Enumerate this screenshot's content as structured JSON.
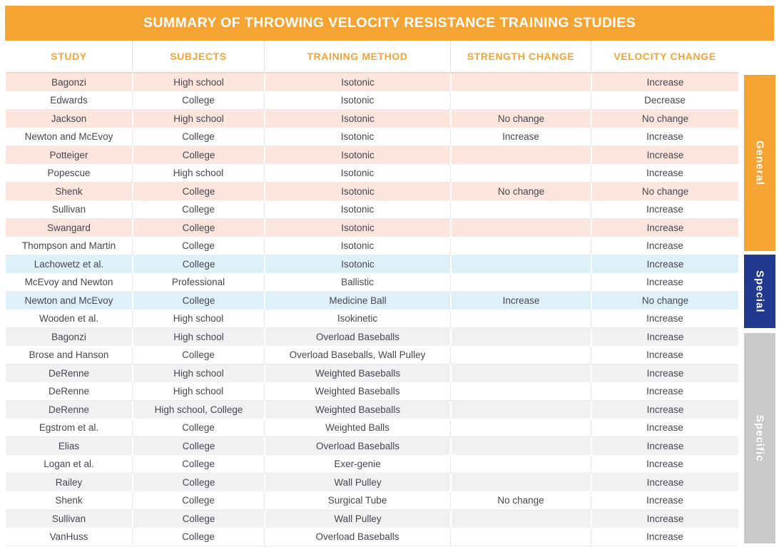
{
  "chart_data": {
    "type": "table",
    "title": "SUMMARY OF THROWING VELOCITY RESISTANCE TRAINING STUDIES",
    "columns": [
      "STUDY",
      "SUBJECTS",
      "TRAINING METHOD",
      "STRENGTH CHANGE",
      "VELOCITY CHANGE"
    ],
    "sections": [
      {
        "label": "General",
        "rows": [
          [
            "Bagonzi",
            "High school",
            "Isotonic",
            "",
            "Increase"
          ],
          [
            "Edwards",
            "College",
            "Isotonic",
            "",
            "Decrease"
          ],
          [
            "Jackson",
            "High school",
            "Isotonic",
            "No change",
            "No change"
          ],
          [
            "Newton and McEvoy",
            "College",
            "Isotonic",
            "Increase",
            "Increase"
          ],
          [
            "Potteiger",
            "College",
            "Isotonic",
            "",
            "Increase"
          ],
          [
            "Popescue",
            "High school",
            "Isotonic",
            "",
            "Increase"
          ],
          [
            "Shenk",
            "College",
            "Isotonic",
            "No change",
            "No change"
          ],
          [
            "Sullivan",
            "College",
            "Isotonic",
            "",
            "Increase"
          ],
          [
            "Swangard",
            "College",
            "Isotonic",
            "",
            "Increase"
          ],
          [
            "Thompson and Martin",
            "College",
            "Isotonic",
            "",
            "Increase"
          ]
        ]
      },
      {
        "label": "Special",
        "rows": [
          [
            "Lachowetz et al.",
            "College",
            "Isotonic",
            "",
            "Increase"
          ],
          [
            "McEvoy and Newton",
            "Professional",
            "Ballistic",
            "",
            "Increase"
          ],
          [
            "Newton and McEvoy",
            "College",
            "Medicine Ball",
            "Increase",
            "No change"
          ],
          [
            "Wooden et al.",
            "High school",
            "Isokinetic",
            "",
            "Increase"
          ]
        ]
      },
      {
        "label": "Specific",
        "rows": [
          [
            "Bagonzi",
            "High school",
            "Overload Baseballs",
            "",
            "Increase"
          ],
          [
            "Brose and Hanson",
            "College",
            "Overload Baseballs, Wall Pulley",
            "",
            "Increase"
          ],
          [
            "DeRenne",
            "High school",
            "Weighted Baseballs",
            "",
            "Increase"
          ],
          [
            "DeRenne",
            "High school",
            "Weighted Baseballs",
            "",
            "Increase"
          ],
          [
            "DeRenne",
            "High school, College",
            "Weighted Baseballs",
            "",
            "Increase"
          ],
          [
            "Egstrom et al.",
            "College",
            "Weighted Balls",
            "",
            "Increase"
          ],
          [
            "Elias",
            "College",
            "Overload Baseballs",
            "",
            "Increase"
          ],
          [
            "Logan et al.",
            "College",
            "Exer-genie",
            "",
            "Increase"
          ],
          [
            "Railey",
            "College",
            "Wall Pulley",
            "",
            "Increase"
          ],
          [
            "Shenk",
            "College",
            "Surgical Tube",
            "No change",
            "Increase"
          ],
          [
            "Sullivan",
            "College",
            "Wall Pulley",
            "",
            "Increase"
          ],
          [
            "VanHuss",
            "College",
            "Overload Baseballs",
            "",
            "Increase"
          ]
        ]
      }
    ],
    "section_tints": [
      "peach",
      "blue",
      "gray"
    ]
  },
  "colors": {
    "orange": "#F5A433",
    "peach": "#FBE5DC",
    "light_blue": "#DEF0F8",
    "light_gray": "#F1F1F3",
    "special_blue": "#21398E",
    "specific_gray": "#C9C9CB",
    "text_dark": "#474750"
  }
}
